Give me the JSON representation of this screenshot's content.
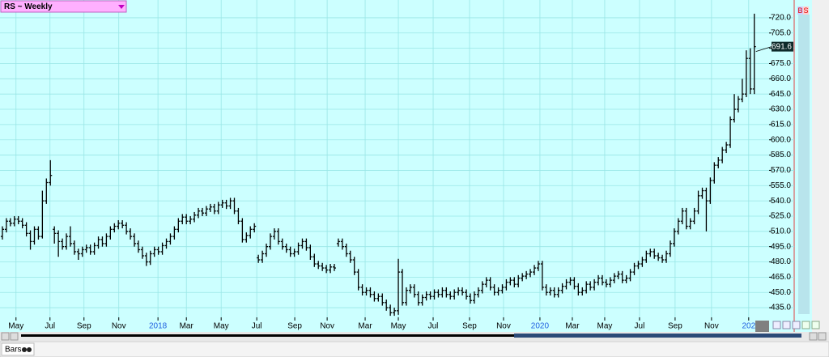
{
  "chart_data": {
    "type": "ohlc",
    "title": "RS ~ Weekly",
    "color": "#000000",
    "grid": true,
    "last_price": 691.6,
    "xlim": [
      -0.6,
      191.7
    ],
    "ylim": [
      425.5,
      729.5
    ],
    "xticks": [
      {
        "value": 3.4,
        "label": "May"
      },
      {
        "value": 11.9,
        "label": "Jul"
      },
      {
        "value": 20.4,
        "label": "Sep"
      },
      {
        "value": 29.1,
        "label": "Nov"
      },
      {
        "value": 38.9,
        "label": "2018"
      },
      {
        "value": 46,
        "label": "Mar"
      },
      {
        "value": 54.7,
        "label": "May"
      },
      {
        "value": 63.6,
        "label": "Jul"
      },
      {
        "value": 73.1,
        "label": "Sep"
      },
      {
        "value": 81.2,
        "label": "Nov"
      },
      {
        "value": 90.7,
        "label": "Mar"
      },
      {
        "value": 99,
        "label": "May"
      },
      {
        "value": 107.7,
        "label": "Jul"
      },
      {
        "value": 116.8,
        "label": "Sep"
      },
      {
        "value": 125.3,
        "label": "Nov"
      },
      {
        "value": 134.4,
        "label": "2020"
      },
      {
        "value": 142.5,
        "label": "Mar"
      },
      {
        "value": 150.6,
        "label": "May"
      },
      {
        "value": 159.3,
        "label": "Jul"
      },
      {
        "value": 168.2,
        "label": "Sep"
      },
      {
        "value": 177.3,
        "label": "Nov"
      },
      {
        "value": 186.6,
        "label": "202"
      }
    ],
    "yticks": [
      {
        "value": 435,
        "label": "435.0"
      },
      {
        "value": 450,
        "label": "450.0"
      },
      {
        "value": 465,
        "label": "465.0"
      },
      {
        "value": 480,
        "label": "480.0"
      },
      {
        "value": 495,
        "label": "495.0"
      },
      {
        "value": 510,
        "label": "510.0"
      },
      {
        "value": 525,
        "label": "525.0"
      },
      {
        "value": 540,
        "label": "540.0"
      },
      {
        "value": 555,
        "label": "555.0"
      },
      {
        "value": 570,
        "label": "570.0"
      },
      {
        "value": 585,
        "label": "585.0"
      },
      {
        "value": 600,
        "label": "600.0"
      },
      {
        "value": 615,
        "label": "615.0"
      },
      {
        "value": 630,
        "label": "630.0"
      },
      {
        "value": 645,
        "label": "645.0"
      },
      {
        "value": 660,
        "label": "660.0"
      },
      {
        "value": 675,
        "label": "675.0"
      },
      {
        "value": 690,
        "label": "690.0"
      },
      {
        "value": 705,
        "label": "705.0"
      },
      {
        "value": 720,
        "label": "720.0"
      }
    ],
    "open": [
      505,
      512,
      520,
      518,
      522,
      520,
      516,
      508,
      500,
      512,
      505,
      540,
      558,
      512,
      508,
      500,
      495,
      505,
      498,
      490,
      488,
      492,
      494,
      490,
      496,
      502,
      498,
      505,
      512,
      515,
      518,
      516,
      510,
      505,
      498,
      492,
      486,
      480,
      488,
      492,
      490,
      496,
      500,
      505,
      512,
      520,
      524,
      520,
      522,
      526,
      530,
      528,
      532,
      534,
      530,
      536,
      538,
      535,
      540,
      530,
      520,
      502,
      506,
      512,
      484,
      482,
      488,
      495,
      505,
      510,
      500,
      495,
      492,
      488,
      490,
      496,
      500,
      494,
      485,
      478,
      476,
      474,
      472,
      475,
      498,
      500,
      495,
      488,
      482,
      470,
      455,
      450,
      452,
      448,
      444,
      446,
      440,
      435,
      430,
      432,
      470,
      440,
      452,
      455,
      448,
      440,
      445,
      448,
      446,
      450,
      448,
      452,
      448,
      446,
      450,
      452,
      450,
      446,
      442,
      448,
      452,
      458,
      462,
      455,
      450,
      452,
      455,
      460,
      462,
      458,
      464,
      466,
      468,
      470,
      474,
      478,
      455,
      450,
      452,
      448,
      452,
      456,
      460,
      462,
      456,
      450,
      452,
      458,
      455,
      460,
      464,
      460,
      458,
      462,
      466,
      468,
      462,
      464,
      470,
      476,
      478,
      482,
      488,
      490,
      486,
      484,
      482,
      488,
      498,
      510,
      520,
      530,
      515,
      520,
      530,
      545,
      550,
      540,
      560,
      575,
      580,
      590,
      595,
      620,
      630,
      640,
      645,
      680,
      650
    ],
    "high": [
      515,
      523,
      523,
      525,
      525,
      523,
      519,
      511,
      515,
      515,
      550,
      562,
      580,
      515,
      511,
      503,
      508,
      515,
      501,
      493,
      495,
      497,
      497,
      499,
      505,
      505,
      508,
      515,
      518,
      521,
      521,
      519,
      513,
      508,
      501,
      495,
      489,
      491,
      495,
      495,
      499,
      503,
      508,
      515,
      523,
      527,
      527,
      525,
      529,
      533,
      533,
      535,
      537,
      537,
      539,
      541,
      541,
      543,
      543,
      533,
      523,
      509,
      515,
      518,
      487,
      491,
      498,
      508,
      513,
      513,
      503,
      498,
      495,
      493,
      499,
      503,
      503,
      497,
      488,
      481,
      479,
      477,
      478,
      478,
      503,
      503,
      498,
      491,
      485,
      473,
      458,
      455,
      455,
      451,
      449,
      449,
      443,
      438,
      435,
      483,
      473,
      455,
      458,
      458,
      451,
      448,
      451,
      451,
      453,
      453,
      455,
      455,
      451,
      453,
      455,
      455,
      453,
      449,
      451,
      455,
      461,
      465,
      465,
      458,
      455,
      458,
      463,
      465,
      465,
      467,
      469,
      471,
      473,
      477,
      481,
      481,
      458,
      455,
      455,
      455,
      459,
      463,
      465,
      465,
      459,
      455,
      461,
      461,
      463,
      467,
      467,
      463,
      465,
      469,
      471,
      471,
      467,
      473,
      479,
      481,
      485,
      491,
      493,
      493,
      489,
      487,
      491,
      501,
      513,
      523,
      533,
      533,
      523,
      533,
      550,
      553,
      553,
      563,
      578,
      583,
      593,
      598,
      623,
      645,
      643,
      660,
      688,
      690,
      724
    ],
    "low": [
      502,
      509,
      515,
      515,
      517,
      513,
      505,
      492,
      497,
      502,
      503,
      537,
      555,
      498,
      485,
      492,
      492,
      495,
      487,
      482,
      485,
      489,
      487,
      487,
      493,
      495,
      495,
      502,
      509,
      512,
      513,
      507,
      502,
      495,
      489,
      483,
      476,
      477,
      485,
      487,
      487,
      493,
      497,
      502,
      509,
      517,
      517,
      517,
      519,
      523,
      525,
      525,
      529,
      527,
      527,
      533,
      532,
      532,
      527,
      517,
      499,
      499,
      503,
      509,
      479,
      479,
      485,
      492,
      502,
      497,
      492,
      489,
      485,
      485,
      487,
      493,
      491,
      482,
      475,
      473,
      471,
      469,
      469,
      471,
      495,
      492,
      485,
      479,
      467,
      452,
      447,
      447,
      445,
      441,
      441,
      437,
      432,
      427,
      427,
      428,
      437,
      437,
      449,
      445,
      437,
      437,
      442,
      443,
      443,
      445,
      445,
      445,
      443,
      443,
      447,
      447,
      443,
      439,
      439,
      445,
      449,
      455,
      452,
      447,
      447,
      449,
      452,
      457,
      455,
      455,
      461,
      463,
      465,
      467,
      471,
      452,
      447,
      447,
      445,
      445,
      449,
      453,
      457,
      453,
      447,
      447,
      449,
      452,
      452,
      457,
      457,
      455,
      455,
      459,
      463,
      459,
      459,
      461,
      467,
      473,
      475,
      479,
      485,
      483,
      481,
      479,
      479,
      485,
      495,
      507,
      517,
      512,
      512,
      517,
      527,
      542,
      510,
      537,
      557,
      572,
      577,
      587,
      592,
      617,
      627,
      637,
      642,
      645,
      645
    ],
    "close": [
      512,
      520,
      518,
      522,
      520,
      516,
      508,
      500,
      512,
      505,
      540,
      558,
      565,
      508,
      500,
      495,
      505,
      498,
      490,
      488,
      492,
      494,
      490,
      496,
      502,
      498,
      505,
      512,
      515,
      518,
      516,
      510,
      505,
      498,
      492,
      486,
      480,
      488,
      492,
      490,
      496,
      500,
      505,
      512,
      520,
      524,
      520,
      522,
      526,
      530,
      528,
      532,
      534,
      530,
      536,
      538,
      535,
      540,
      530,
      520,
      502,
      506,
      512,
      515,
      482,
      488,
      495,
      505,
      510,
      500,
      495,
      492,
      488,
      490,
      496,
      500,
      494,
      485,
      478,
      476,
      474,
      472,
      475,
      474,
      500,
      495,
      488,
      482,
      470,
      455,
      450,
      452,
      448,
      444,
      446,
      440,
      435,
      430,
      432,
      470,
      440,
      452,
      455,
      448,
      440,
      445,
      448,
      446,
      450,
      448,
      452,
      448,
      446,
      450,
      452,
      450,
      446,
      442,
      448,
      452,
      458,
      462,
      455,
      450,
      452,
      455,
      460,
      462,
      458,
      464,
      466,
      468,
      470,
      474,
      478,
      455,
      450,
      452,
      448,
      452,
      456,
      460,
      462,
      456,
      450,
      452,
      458,
      455,
      460,
      464,
      460,
      458,
      462,
      466,
      468,
      462,
      464,
      470,
      476,
      478,
      482,
      488,
      490,
      486,
      484,
      482,
      488,
      498,
      510,
      520,
      530,
      515,
      520,
      530,
      545,
      550,
      540,
      560,
      575,
      580,
      590,
      595,
      620,
      630,
      640,
      645,
      680,
      650,
      691.6
    ]
  },
  "ui": {
    "status_tab": "Bars",
    "buttons": [
      "B",
      "S"
    ]
  }
}
